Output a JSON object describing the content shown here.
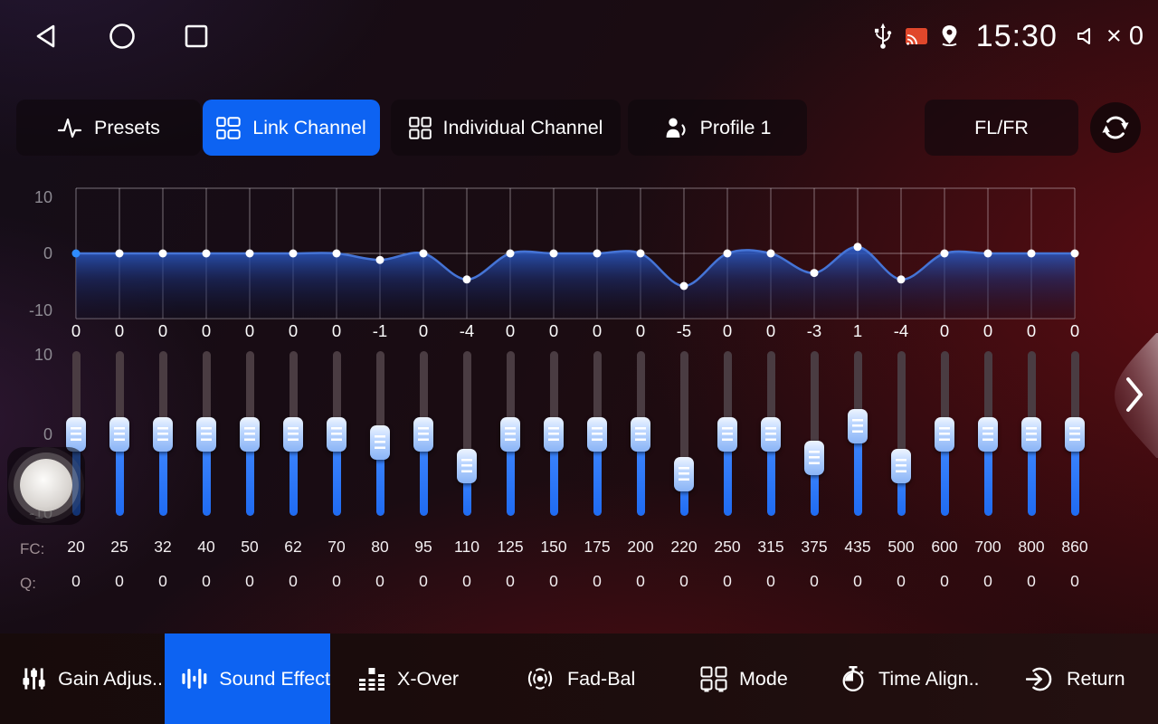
{
  "status_bar": {
    "time": "15:30",
    "mute_text": "× 0"
  },
  "tabs": {
    "presets": "Presets",
    "link_channel": "Link Channel",
    "individual_channel": "Individual Channel",
    "profile": "Profile 1",
    "output_pair": "FL/FR"
  },
  "equalizer": {
    "y_ticks": [
      "10",
      "0",
      "-10"
    ],
    "fc_label": "FC:",
    "q_label": "Q:",
    "selected_band": 0,
    "bands": [
      {
        "gain": 0,
        "fc": "20",
        "q": "0"
      },
      {
        "gain": 0,
        "fc": "25",
        "q": "0"
      },
      {
        "gain": 0,
        "fc": "32",
        "q": "0"
      },
      {
        "gain": 0,
        "fc": "40",
        "q": "0"
      },
      {
        "gain": 0,
        "fc": "50",
        "q": "0"
      },
      {
        "gain": 0,
        "fc": "62",
        "q": "0"
      },
      {
        "gain": 0,
        "fc": "70",
        "q": "0"
      },
      {
        "gain": -1,
        "fc": "80",
        "q": "0"
      },
      {
        "gain": 0,
        "fc": "95",
        "q": "0"
      },
      {
        "gain": -4,
        "fc": "110",
        "q": "0"
      },
      {
        "gain": 0,
        "fc": "125",
        "q": "0"
      },
      {
        "gain": 0,
        "fc": "150",
        "q": "0"
      },
      {
        "gain": 0,
        "fc": "175",
        "q": "0"
      },
      {
        "gain": 0,
        "fc": "200",
        "q": "0"
      },
      {
        "gain": -5,
        "fc": "220",
        "q": "0"
      },
      {
        "gain": 0,
        "fc": "250",
        "q": "0"
      },
      {
        "gain": 0,
        "fc": "315",
        "q": "0"
      },
      {
        "gain": -3,
        "fc": "375",
        "q": "0"
      },
      {
        "gain": 1,
        "fc": "435",
        "q": "0"
      },
      {
        "gain": -4,
        "fc": "500",
        "q": "0"
      },
      {
        "gain": 0,
        "fc": "600",
        "q": "0"
      },
      {
        "gain": 0,
        "fc": "700",
        "q": "0"
      },
      {
        "gain": 0,
        "fc": "800",
        "q": "0"
      },
      {
        "gain": 0,
        "fc": "860",
        "q": "0"
      }
    ]
  },
  "bottom_nav": {
    "active_index": 1,
    "items": [
      {
        "label": "Gain Adjus.."
      },
      {
        "label": "Sound Effect"
      },
      {
        "label": "X-Over"
      },
      {
        "label": "Fad-Bal"
      },
      {
        "label": "Mode"
      },
      {
        "label": "Time Align.."
      },
      {
        "label": "Return"
      }
    ]
  },
  "colors": {
    "accent": "#0d63f2",
    "curve": "#4574d6",
    "selected_point": "#2f8cff",
    "slider_blue": "#2d7bfb",
    "cast_orange": "#e0472b"
  }
}
